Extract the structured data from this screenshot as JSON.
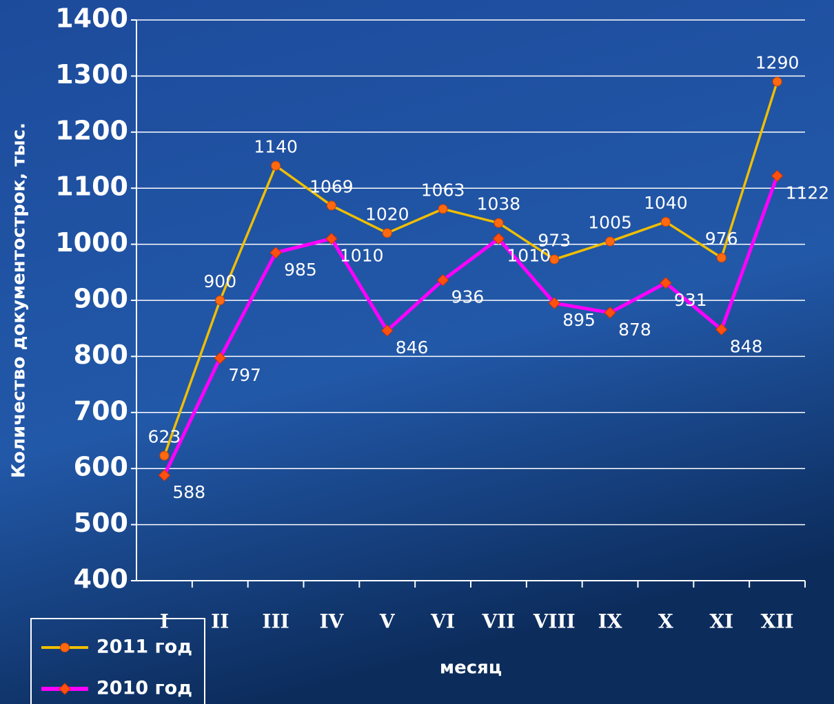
{
  "chart_data": {
    "type": "line",
    "ylabel": "Количество документострок, тыс.",
    "xlabel": "месяц",
    "categories": [
      "I",
      "II",
      "III",
      "IV",
      "V",
      "VI",
      "VII",
      "VIII",
      "IX",
      "X",
      "XI",
      "XII"
    ],
    "series": [
      {
        "name": "2011 год",
        "color": "#f0be00",
        "marker_color": "#ff6a10",
        "marker": "circle",
        "values": [
          623,
          900,
          1140,
          1069,
          1020,
          1063,
          1038,
          973,
          1005,
          1040,
          976,
          1290
        ]
      },
      {
        "name": "2010 год",
        "color": "#ff00ff",
        "marker_color": "#ff5010",
        "marker": "diamond",
        "values": [
          588,
          797,
          985,
          1010,
          846,
          936,
          1010,
          895,
          878,
          931,
          848,
          1122
        ]
      }
    ],
    "ylim": [
      400,
      1400
    ],
    "yticks": [
      400,
      500,
      600,
      700,
      800,
      900,
      1000,
      1100,
      1200,
      1300,
      1400
    ],
    "grid": true
  }
}
